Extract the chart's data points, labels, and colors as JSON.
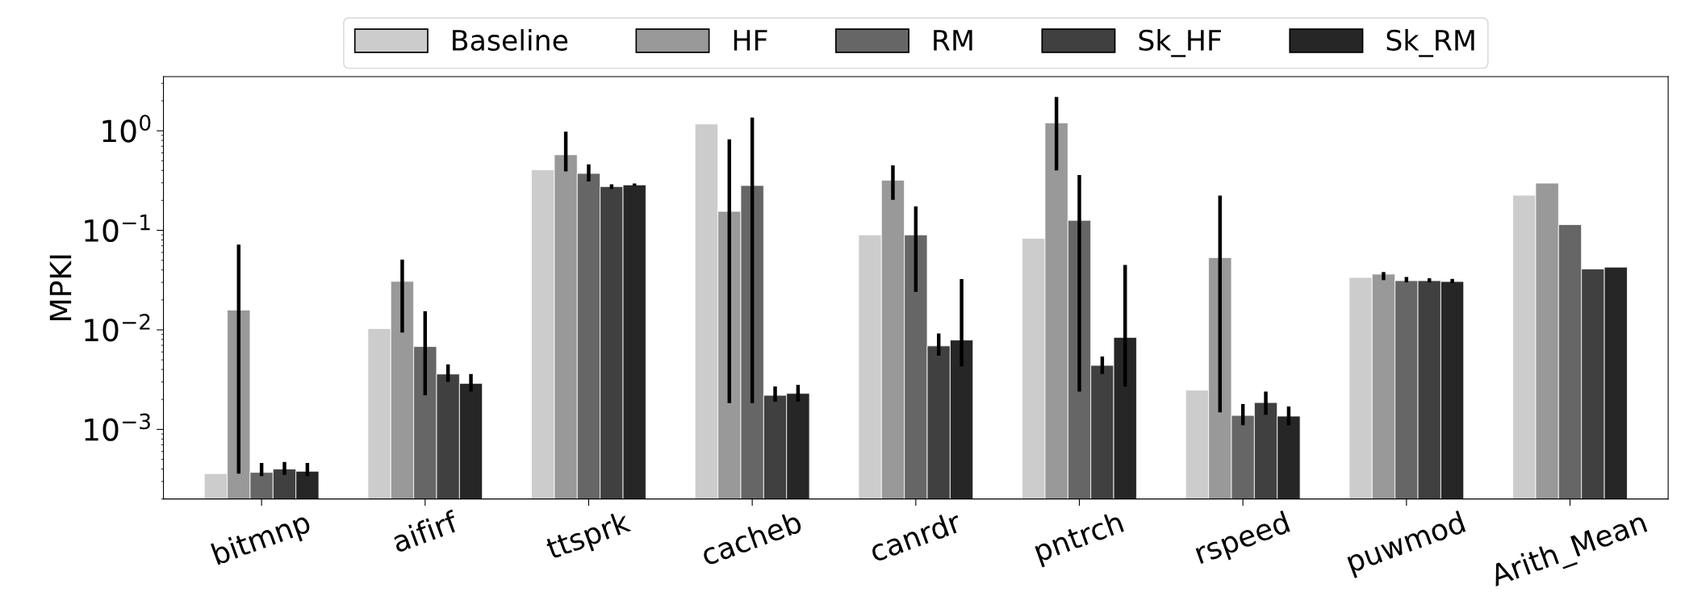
{
  "chart_data": {
    "type": "bar",
    "ylabel": "MPKI",
    "log": true,
    "legend": "top",
    "grid": false,
    "ylim": [
      0.0002,
      3.5
    ],
    "yticks": [
      {
        "value": 0.001,
        "label": "10$^{−3}$"
      },
      {
        "value": 0.01,
        "label": "10$^{−2}$"
      },
      {
        "value": 0.1,
        "label": "10$^{−1}$"
      },
      {
        "value": 1,
        "label": "10$^{0}$"
      }
    ],
    "categories": [
      "bitmnp",
      "aifirf",
      "ttsprk",
      "cacheb",
      "canrdr",
      "pntrch",
      "rspeed",
      "puwmod",
      "Arith_Mean"
    ],
    "series": [
      {
        "name": "Baseline",
        "color": "#cccccc",
        "values": [
          0.00036,
          0.0103,
          0.405,
          1.17,
          0.09,
          0.083,
          0.00248,
          0.0336,
          0.225
        ],
        "errors": [
          null,
          null,
          null,
          null,
          null,
          null,
          null,
          null,
          null
        ]
      },
      {
        "name": "HF",
        "color": "#999999",
        "values": [
          0.0158,
          0.0307,
          0.574,
          0.155,
          0.319,
          1.2,
          0.0532,
          0.0363,
          0.298
        ],
        "errors": [
          [
            0.00036,
            0.072
          ],
          [
            0.0094,
            0.0508
          ],
          [
            0.39,
            0.98
          ],
          [
            0.00184,
            0.82
          ],
          [
            0.202,
            0.45
          ],
          [
            0.4,
            2.18
          ],
          [
            0.00148,
            0.223
          ],
          [
            0.0316,
            0.0381
          ],
          null
        ]
      },
      {
        "name": "RM",
        "color": "#666666",
        "values": [
          0.00037,
          0.0068,
          0.373,
          0.282,
          0.09,
          0.126,
          0.00138,
          0.0312,
          0.114
        ],
        "errors": [
          [
            0.00034,
            0.00046
          ],
          [
            0.0022,
            0.0154
          ],
          [
            0.31,
            0.46
          ],
          [
            0.00184,
            1.36
          ],
          [
            0.0241,
            0.174
          ],
          [
            0.0024,
            0.36
          ],
          [
            0.0011,
            0.0018
          ],
          [
            0.03,
            0.034
          ],
          null
        ]
      },
      {
        "name": "Sk_HF",
        "color": "#404040",
        "values": [
          0.0004,
          0.0036,
          0.275,
          0.0022,
          0.0069,
          0.0044,
          0.00186,
          0.0312,
          0.0409
        ],
        "errors": [
          [
            0.00035,
            0.00047
          ],
          [
            0.003,
            0.0045
          ],
          [
            0.26,
            0.29
          ],
          [
            0.0019,
            0.0027
          ],
          [
            0.0055,
            0.0092
          ],
          [
            0.0036,
            0.0054
          ],
          [
            0.0014,
            0.0024
          ],
          [
            0.03,
            0.033
          ],
          null
        ]
      },
      {
        "name": "Sk_RM",
        "color": "#262626",
        "values": [
          0.00038,
          0.0029,
          0.286,
          0.0023,
          0.0079,
          0.0084,
          0.00136,
          0.0306,
          0.0427
        ],
        "errors": [
          [
            0.00034,
            0.00046
          ],
          [
            0.0024,
            0.0036
          ],
          [
            0.28,
            0.295
          ],
          [
            0.0019,
            0.0028
          ],
          [
            0.0043,
            0.0324
          ],
          [
            0.0027,
            0.0449
          ],
          [
            0.0011,
            0.0017
          ],
          [
            0.0295,
            0.0325
          ],
          null
        ]
      }
    ]
  }
}
